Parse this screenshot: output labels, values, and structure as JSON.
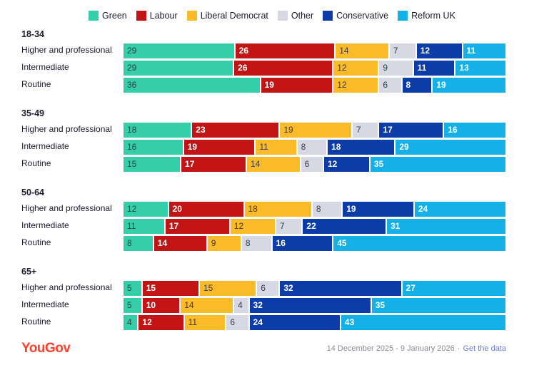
{
  "chart_data": {
    "type": "bar",
    "orientation": "horizontal",
    "stacked": true,
    "normalized": true,
    "series": [
      {
        "name": "Green",
        "color": "#34cfa8"
      },
      {
        "name": "Labour",
        "color": "#c21414"
      },
      {
        "name": "Liberal Democrat",
        "color": "#fbbb29"
      },
      {
        "name": "Other",
        "color": "#d6d9e4"
      },
      {
        "name": "Conservative",
        "color": "#0b3ca7"
      },
      {
        "name": "Reform UK",
        "color": "#14b1e9"
      }
    ],
    "groups": [
      {
        "label": "18-34",
        "rows": [
          {
            "label": "Higher and professional",
            "values": [
              29,
              26,
              14,
              7,
              12,
              11
            ]
          },
          {
            "label": "Intermediate",
            "values": [
              29,
              26,
              12,
              9,
              11,
              13
            ]
          },
          {
            "label": "Routine",
            "values": [
              36,
              19,
              12,
              6,
              8,
              19
            ]
          }
        ]
      },
      {
        "label": "35-49",
        "rows": [
          {
            "label": "Higher and professional",
            "values": [
              18,
              23,
              19,
              7,
              17,
              16
            ]
          },
          {
            "label": "Intermediate",
            "values": [
              16,
              19,
              11,
              8,
              18,
              29
            ]
          },
          {
            "label": "Routine",
            "values": [
              15,
              17,
              14,
              6,
              12,
              35
            ]
          }
        ]
      },
      {
        "label": "50-64",
        "rows": [
          {
            "label": "Higher and professional",
            "values": [
              12,
              20,
              18,
              8,
              19,
              24
            ]
          },
          {
            "label": "Intermediate",
            "values": [
              11,
              17,
              12,
              7,
              22,
              31
            ]
          },
          {
            "label": "Routine",
            "values": [
              8,
              14,
              9,
              8,
              16,
              45
            ]
          }
        ]
      },
      {
        "label": "65+",
        "rows": [
          {
            "label": "Higher and professional",
            "values": [
              5,
              15,
              15,
              6,
              32,
              27
            ]
          },
          {
            "label": "Intermediate",
            "values": [
              5,
              10,
              14,
              4,
              32,
              35
            ]
          },
          {
            "label": "Routine",
            "values": [
              4,
              12,
              11,
              6,
              24,
              43
            ]
          }
        ]
      }
    ]
  },
  "branding": {
    "logo_text": "YouGov",
    "logo_color": "#ff412c"
  },
  "footer": {
    "date_range": "14 December 2025 - 9 January 2026",
    "separator": "·",
    "link_text": "Get the data"
  }
}
